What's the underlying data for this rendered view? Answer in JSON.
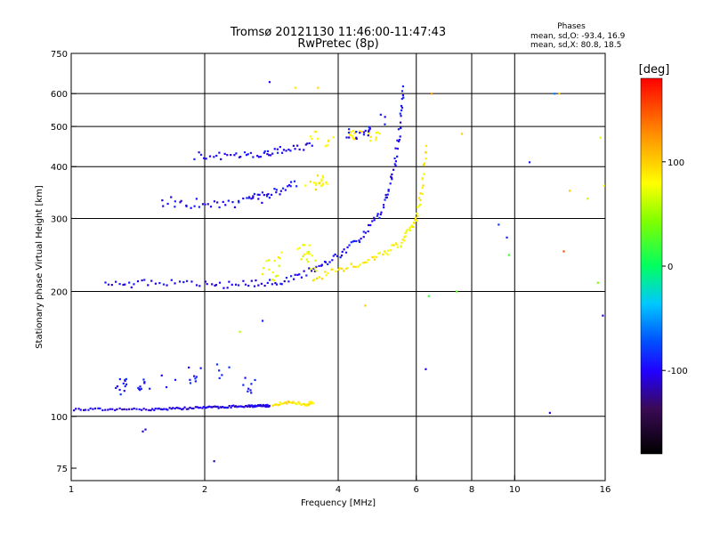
{
  "header": {
    "title_line1": "Tromsø 20121130 11:46:00-11:47:43",
    "title_line2": "RwPretec (8p)",
    "stats_title": "Phases",
    "stats_o": "mean, sd,O: -93.4, 16.9",
    "stats_x": "mean, sd,X: 80.8, 18.5"
  },
  "chart_data": {
    "type": "scatter",
    "xlabel": "Frequency [MHz]",
    "ylabel": "Stationary phase Virtual Height [km]",
    "xscale": "log",
    "yscale": "log",
    "xlim": [
      1,
      16
    ],
    "ylim": [
      70,
      750
    ],
    "xticks": [
      1,
      2,
      4,
      6,
      8,
      10,
      16
    ],
    "xtick_labels": [
      "1",
      "2",
      "4",
      "6",
      "8",
      "10",
      "16"
    ],
    "xgrid": [
      2,
      4,
      6,
      8,
      10
    ],
    "yticks": [
      75,
      100,
      200,
      300,
      400,
      500,
      600,
      750
    ],
    "ytick_labels": [
      "75",
      "100",
      "200",
      "300",
      "400",
      "500",
      "600",
      "750"
    ],
    "ygrid": [
      100,
      200,
      300,
      400,
      500,
      600
    ],
    "colorbar": {
      "label": "[deg]",
      "range": [
        -180,
        180
      ],
      "ticks": [
        100,
        0,
        -100
      ],
      "tick_labels": [
        "100",
        "0",
        "-100"
      ]
    },
    "traces": [
      {
        "name": "E-layer O",
        "kind": "line",
        "f": [
          1.0,
          1.5,
          2.0,
          2.5,
          2.8
        ],
        "h": [
          104,
          104,
          105,
          106,
          106
        ],
        "phase": -105,
        "n": 130,
        "jitter": 0.006
      },
      {
        "name": "E-layer X",
        "kind": "line",
        "f": [
          2.85,
          3.1,
          3.4,
          3.5
        ],
        "h": [
          107,
          108,
          107,
          108
        ],
        "phase": 90,
        "n": 40,
        "jitter": 0.008
      },
      {
        "name": "Sporadic E",
        "kind": "cloud",
        "f": [
          1.3,
          1.45,
          1.65,
          1.9,
          2.2,
          2.5
        ],
        "h": [
          118,
          120,
          122,
          125,
          128,
          118
        ],
        "phase": -95,
        "n": 45,
        "jitter": 0.05
      },
      {
        "name": "F O main",
        "kind": "line",
        "f": [
          1.2,
          1.5,
          2.0,
          2.5,
          3.0,
          3.5,
          4.0,
          4.5,
          5.0,
          5.3,
          5.5,
          5.6
        ],
        "h": [
          207,
          210,
          208,
          208,
          212,
          225,
          245,
          270,
          310,
          380,
          480,
          620
        ],
        "phase": -100,
        "n": 150,
        "jitter": 0.02
      },
      {
        "name": "F X main",
        "kind": "line",
        "f": [
          3.5,
          4.0,
          4.5,
          5.0,
          5.5,
          5.8,
          6.0,
          6.2,
          6.3
        ],
        "h": [
          215,
          225,
          235,
          245,
          260,
          280,
          300,
          360,
          450
        ],
        "phase": 85,
        "n": 90,
        "jitter": 0.02
      },
      {
        "name": "F X low",
        "kind": "cloud",
        "f": [
          2.8,
          3.0,
          3.3,
          3.5
        ],
        "h": [
          225,
          240,
          250,
          235
        ],
        "phase": 75,
        "n": 35,
        "jitter": 0.06
      },
      {
        "name": "2F O",
        "kind": "line",
        "f": [
          1.6,
          2.0,
          2.5,
          2.8,
          3.2
        ],
        "h": [
          330,
          325,
          330,
          340,
          360
        ],
        "phase": -100,
        "n": 60,
        "jitter": 0.03
      },
      {
        "name": "2F X",
        "kind": "cloud",
        "f": [
          3.5,
          3.7
        ],
        "h": [
          360,
          370
        ],
        "phase": 85,
        "n": 18,
        "jitter": 0.03
      },
      {
        "name": "3F O",
        "kind": "line",
        "f": [
          1.9,
          2.3,
          2.7,
          3.0,
          3.5
        ],
        "h": [
          425,
          425,
          430,
          440,
          450
        ],
        "phase": -100,
        "n": 50,
        "jitter": 0.02
      },
      {
        "name": "3F X",
        "kind": "cloud",
        "f": [
          3.5,
          3.8,
          4.4,
          4.8
        ],
        "h": [
          480,
          460,
          480,
          470
        ],
        "phase": 85,
        "n": 30,
        "jitter": 0.03
      },
      {
        "name": "F2 O upper",
        "kind": "cloud",
        "f": [
          4.3,
          4.6,
          5.0
        ],
        "h": [
          480,
          490,
          520
        ],
        "phase": -100,
        "n": 20,
        "jitter": 0.03
      }
    ],
    "extra_points": [
      {
        "f": 1.45,
        "h": 92,
        "phase": -110
      },
      {
        "f": 1.47,
        "h": 93,
        "phase": -110
      },
      {
        "f": 2.1,
        "h": 78,
        "phase": -120
      },
      {
        "f": 2.7,
        "h": 170,
        "phase": -90
      },
      {
        "f": 2.8,
        "h": 640,
        "phase": -100
      },
      {
        "f": 2.4,
        "h": 160,
        "phase": 60
      },
      {
        "f": 3.2,
        "h": 620,
        "phase": 90
      },
      {
        "f": 3.6,
        "h": 620,
        "phase": 95
      },
      {
        "f": 4.6,
        "h": 185,
        "phase": 100
      },
      {
        "f": 6.3,
        "h": 130,
        "phase": -100
      },
      {
        "f": 6.4,
        "h": 195,
        "phase": 20
      },
      {
        "f": 6.5,
        "h": 600,
        "phase": 120
      },
      {
        "f": 7.4,
        "h": 200,
        "phase": 30
      },
      {
        "f": 7.6,
        "h": 480,
        "phase": 100
      },
      {
        "f": 9.2,
        "h": 290,
        "phase": -80
      },
      {
        "f": 9.6,
        "h": 270,
        "phase": -90
      },
      {
        "f": 9.7,
        "h": 245,
        "phase": 20
      },
      {
        "f": 10.8,
        "h": 410,
        "phase": -90
      },
      {
        "f": 12.0,
        "h": 102,
        "phase": -100
      },
      {
        "f": 12.6,
        "h": 600,
        "phase": 100
      },
      {
        "f": 12.9,
        "h": 250,
        "phase": 150
      },
      {
        "f": 13.3,
        "h": 350,
        "phase": 100
      },
      {
        "f": 14.6,
        "h": 335,
        "phase": 60
      },
      {
        "f": 15.4,
        "h": 210,
        "phase": 40
      },
      {
        "f": 15.8,
        "h": 175,
        "phase": -110
      },
      {
        "f": 15.9,
        "h": 360,
        "phase": 80
      },
      {
        "f": 15.6,
        "h": 470,
        "phase": 70
      },
      {
        "f": 12.3,
        "h": 600,
        "phase": -60
      }
    ]
  }
}
